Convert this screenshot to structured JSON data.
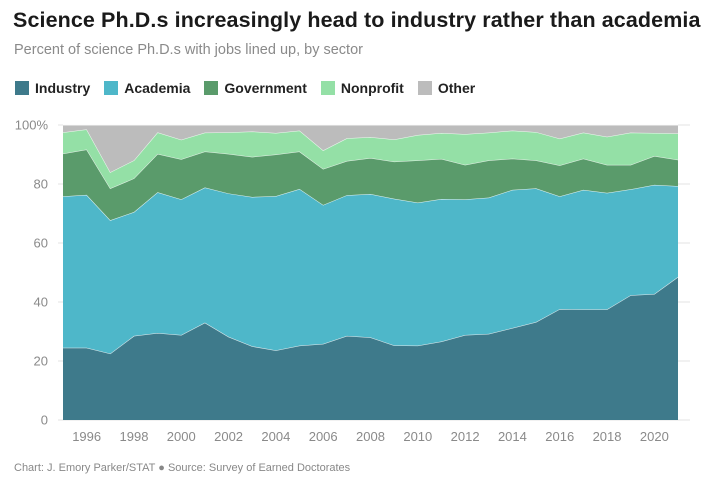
{
  "title": "Science Ph.D.s increasingly head to industry rather than academia",
  "subtitle": "Percent of science Ph.D.s with jobs lined up, by sector",
  "footer": "Chart: J. Emory Parker/STAT ● Source: Survey of Earned Doctorates",
  "chart_data": {
    "type": "area",
    "stacked": true,
    "x": [
      1995,
      1996,
      1997,
      1998,
      1999,
      2000,
      2001,
      2002,
      2003,
      2004,
      2005,
      2006,
      2007,
      2008,
      2009,
      2010,
      2011,
      2012,
      2013,
      2014,
      2015,
      2016,
      2017,
      2018,
      2019,
      2020,
      2021
    ],
    "xticks": [
      1996,
      1998,
      2000,
      2002,
      2004,
      2006,
      2008,
      2010,
      2012,
      2014,
      2016,
      2018,
      2020
    ],
    "xtick_labels": [
      "1996",
      "1998",
      "2000",
      "2002",
      "2004",
      "2006",
      "2008",
      "2010",
      "2012",
      "2014",
      "2016",
      "2018",
      "2020"
    ],
    "yticks": [
      0,
      20,
      40,
      60,
      80,
      100
    ],
    "ytick_labels": [
      "0",
      "20",
      "40",
      "60",
      "80",
      "100%"
    ],
    "ylim": [
      0,
      100
    ],
    "grid": true,
    "legend_position": "top-left",
    "series": [
      {
        "name": "Industry",
        "color": "#3e7a8b",
        "values": [
          24.5,
          24.5,
          22.5,
          28.5,
          29.5,
          28.8,
          33,
          28.2,
          25,
          23.6,
          25.2,
          25.8,
          28.5,
          28,
          25.3,
          25.2,
          26.6,
          28.8,
          29.2,
          31.2,
          33.2,
          37.6,
          37.5,
          37.5,
          42.3,
          42.7,
          48.5
        ]
      },
      {
        "name": "Academia",
        "color": "#4eb7c9",
        "values": [
          51.3,
          51.8,
          45.2,
          42,
          47.7,
          46,
          45.8,
          48.6,
          50.6,
          52.3,
          53.1,
          47.1,
          47.7,
          48.6,
          49.7,
          48.5,
          48.3,
          46,
          46.2,
          46.8,
          45.3,
          38.2,
          40.5,
          39.5,
          35.9,
          37,
          30.8
        ]
      },
      {
        "name": "Government",
        "color": "#5a9b6b",
        "values": [
          14.5,
          15.4,
          10.8,
          11.4,
          13,
          13.6,
          12.2,
          13.4,
          13.6,
          14.1,
          12.7,
          12.2,
          11.6,
          12.2,
          12.6,
          14.3,
          13.6,
          11.7,
          12.6,
          10.6,
          9.5,
          10.5,
          10.6,
          9.5,
          8.3,
          9.8,
          8.9
        ]
      },
      {
        "name": "Nonprofit",
        "color": "#94e0a6",
        "values": [
          7.2,
          6.8,
          5.5,
          6.1,
          7.3,
          6.6,
          6.4,
          7.3,
          8.6,
          7.3,
          7.1,
          6.3,
          7.7,
          7.1,
          7.5,
          8.6,
          8.8,
          10.4,
          9.4,
          9.5,
          9.6,
          9.1,
          8.8,
          9.5,
          10.9,
          7.8,
          8.9
        ]
      },
      {
        "name": "Other",
        "color": "#bcbcbc",
        "values": [
          2.5,
          1.5,
          16,
          12,
          2.5,
          5,
          2.6,
          2.5,
          2.2,
          2.7,
          1.9,
          8.6,
          4.5,
          4.1,
          4.9,
          3.4,
          2.7,
          3.1,
          2.6,
          1.9,
          2.4,
          4.6,
          2.6,
          4,
          2.6,
          2.7,
          2.9
        ]
      }
    ]
  }
}
